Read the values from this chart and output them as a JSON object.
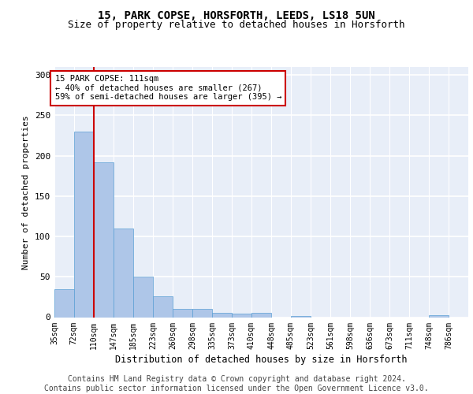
{
  "title1": "15, PARK COPSE, HORSFORTH, LEEDS, LS18 5UN",
  "title2": "Size of property relative to detached houses in Horsforth",
  "xlabel": "Distribution of detached houses by size in Horsforth",
  "ylabel": "Number of detached properties",
  "footer1": "Contains HM Land Registry data © Crown copyright and database right 2024.",
  "footer2": "Contains public sector information licensed under the Open Government Licence v3.0.",
  "annotation_text": "15 PARK COPSE: 111sqm\n← 40% of detached houses are smaller (267)\n59% of semi-detached houses are larger (395) →",
  "bin_labels": [
    "35sqm",
    "72sqm",
    "110sqm",
    "147sqm",
    "185sqm",
    "223sqm",
    "260sqm",
    "298sqm",
    "335sqm",
    "373sqm",
    "410sqm",
    "448sqm",
    "485sqm",
    "523sqm",
    "561sqm",
    "598sqm",
    "636sqm",
    "673sqm",
    "711sqm",
    "748sqm",
    "786sqm"
  ],
  "bin_edges": [
    35,
    72,
    110,
    147,
    185,
    223,
    260,
    298,
    335,
    373,
    410,
    448,
    485,
    523,
    561,
    598,
    636,
    673,
    711,
    748,
    786,
    823
  ],
  "bar_values": [
    35,
    230,
    192,
    110,
    50,
    26,
    10,
    10,
    5,
    4,
    5,
    0,
    1,
    0,
    0,
    0,
    0,
    0,
    0,
    2,
    0
  ],
  "bar_color": "#aec6e8",
  "bar_edge_color": "#5a9fd4",
  "vline_color": "#cc0000",
  "vline_x": 110,
  "ylim": [
    0,
    310
  ],
  "yticks": [
    0,
    50,
    100,
    150,
    200,
    250,
    300
  ],
  "background_color": "#e8eef8",
  "grid_color": "#ffffff",
  "annotation_box_color": "#ffffff",
  "annotation_box_edge": "#cc0000",
  "title_fontsize": 10,
  "subtitle_fontsize": 9,
  "axis_label_fontsize": 8.5,
  "tick_fontsize": 7,
  "footer_fontsize": 7,
  "ylabel_fontsize": 8
}
